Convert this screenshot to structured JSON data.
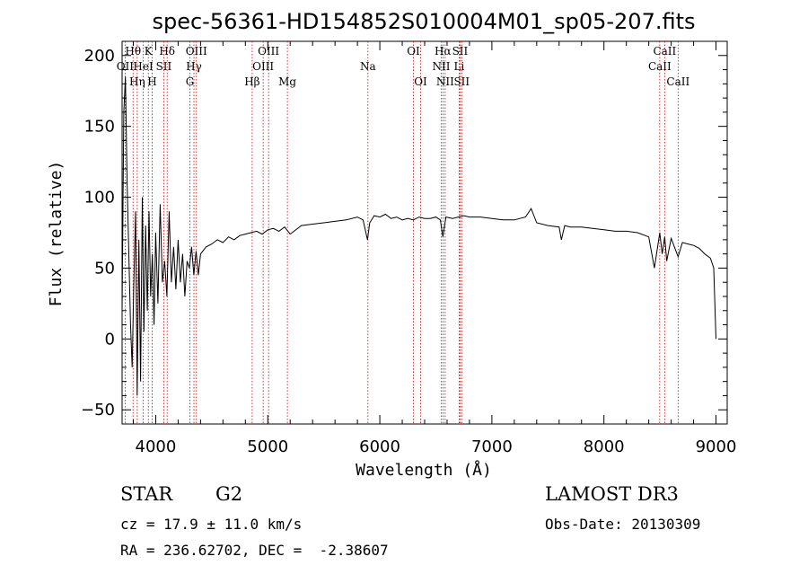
{
  "chart_data": {
    "type": "line",
    "title": "spec-56361-HD154852S010004M01_sp05-207.fits",
    "xlabel": "Wavelength (Å)",
    "ylabel": "Flux (relative)",
    "xlim": [
      3700,
      9100
    ],
    "ylim": [
      -60,
      210
    ],
    "xticks": [
      4000,
      5000,
      6000,
      7000,
      8000,
      9000
    ],
    "yticks": [
      -50,
      0,
      50,
      100,
      150,
      200
    ],
    "xtick_labels": [
      "4000",
      "5000",
      "6000",
      "7000",
      "8000",
      "9000"
    ],
    "ytick_labels": [
      "−50",
      "0",
      "50",
      "100",
      "150",
      "200"
    ],
    "series": [
      {
        "name": "flux",
        "x": [
          3700,
          3715,
          3730,
          3745,
          3760,
          3775,
          3790,
          3805,
          3820,
          3835,
          3850,
          3865,
          3880,
          3895,
          3910,
          3925,
          3940,
          3955,
          3970,
          3985,
          4000,
          4020,
          4040,
          4060,
          4080,
          4100,
          4120,
          4140,
          4160,
          4180,
          4200,
          4220,
          4240,
          4260,
          4280,
          4300,
          4320,
          4340,
          4360,
          4380,
          4400,
          4450,
          4500,
          4550,
          4600,
          4650,
          4700,
          4750,
          4800,
          4850,
          4900,
          4950,
          5000,
          5050,
          5100,
          5150,
          5200,
          5300,
          5400,
          5500,
          5600,
          5700,
          5800,
          5850,
          5890,
          5910,
          5950,
          6000,
          6050,
          6100,
          6150,
          6200,
          6250,
          6300,
          6350,
          6400,
          6450,
          6500,
          6540,
          6563,
          6590,
          6650,
          6700,
          6750,
          6800,
          6900,
          7000,
          7100,
          7200,
          7300,
          7350,
          7400,
          7500,
          7600,
          7620,
          7650,
          7700,
          7800,
          7900,
          8000,
          8100,
          8200,
          8300,
          8400,
          8450,
          8498,
          8520,
          8542,
          8560,
          8600,
          8662,
          8700,
          8750,
          8800,
          8850,
          8900,
          8950,
          8980,
          9000
        ],
        "y": [
          20,
          160,
          185,
          110,
          60,
          10,
          -20,
          40,
          90,
          -40,
          70,
          -30,
          100,
          5,
          80,
          20,
          90,
          30,
          60,
          10,
          75,
          25,
          95,
          40,
          55,
          30,
          90,
          40,
          65,
          35,
          70,
          40,
          60,
          30,
          55,
          50,
          65,
          45,
          62,
          45,
          60,
          65,
          67,
          70,
          68,
          72,
          70,
          73,
          74,
          75,
          76,
          74,
          77,
          78,
          76,
          79,
          74,
          80,
          81,
          82,
          83,
          84,
          86,
          84,
          70,
          82,
          87,
          86,
          88,
          85,
          86,
          84,
          85,
          84,
          86,
          85,
          85,
          86,
          84,
          72,
          86,
          85,
          86,
          87,
          86,
          86,
          85,
          84,
          84,
          86,
          92,
          82,
          80,
          79,
          70,
          80,
          79,
          79,
          78,
          77,
          76,
          76,
          75,
          72,
          50,
          75,
          60,
          72,
          55,
          71,
          58,
          68,
          67,
          66,
          64,
          60,
          57,
          50,
          0
        ]
      }
    ],
    "line_markers": [
      {
        "label": "OII",
        "x": 3727,
        "row": 2
      },
      {
        "label": "Hθ",
        "x": 3798,
        "row": 1
      },
      {
        "label": "Hη",
        "x": 3835,
        "row": 3
      },
      {
        "label": "HeI",
        "x": 3889,
        "row": 2
      },
      {
        "label": "K",
        "x": 3934,
        "row": 1
      },
      {
        "label": "H",
        "x": 3968,
        "row": 3
      },
      {
        "label": "SII",
        "x": 4072,
        "row": 2
      },
      {
        "label": "Hδ",
        "x": 4102,
        "row": 1
      },
      {
        "label": "G",
        "x": 4305,
        "row": 3
      },
      {
        "label": "Hγ",
        "x": 4341,
        "row": 2
      },
      {
        "label": "OIII",
        "x": 4363,
        "row": 1
      },
      {
        "label": "Hβ",
        "x": 4861,
        "row": 3
      },
      {
        "label": "OIII",
        "x": 4959,
        "row": 2
      },
      {
        "label": "OIII",
        "x": 5007,
        "row": 1
      },
      {
        "label": "Mg",
        "x": 5175,
        "row": 3
      },
      {
        "label": "Na",
        "x": 5894,
        "row": 2
      },
      {
        "label": "OI",
        "x": 6300,
        "row": 1
      },
      {
        "label": "OI",
        "x": 6364,
        "row": 3
      },
      {
        "label": "NII",
        "x": 6548,
        "row": 2
      },
      {
        "label": "Hα",
        "x": 6563,
        "row": 1
      },
      {
        "label": "NII",
        "x": 6583,
        "row": 3
      },
      {
        "label": "Li",
        "x": 6708,
        "row": 2
      },
      {
        "label": "SII",
        "x": 6716,
        "row": 1
      },
      {
        "label": "SII",
        "x": 6731,
        "row": 3
      },
      {
        "label": "CaII",
        "x": 8498,
        "row": 2
      },
      {
        "label": "CaII",
        "x": 8542,
        "row": 1
      },
      {
        "label": "CaII",
        "x": 8662,
        "row": 3
      }
    ],
    "marker_color": "#cc0000",
    "line_color": "#000000"
  },
  "info": {
    "object_class": "STAR",
    "subclass": "G2",
    "survey": "LAMOST DR3",
    "cz": "cz = 17.9 ± 11.0 km/s",
    "obs_date": "Obs-Date: 20130309",
    "coords": "RA = 236.62702, DEC =  -2.38607"
  }
}
